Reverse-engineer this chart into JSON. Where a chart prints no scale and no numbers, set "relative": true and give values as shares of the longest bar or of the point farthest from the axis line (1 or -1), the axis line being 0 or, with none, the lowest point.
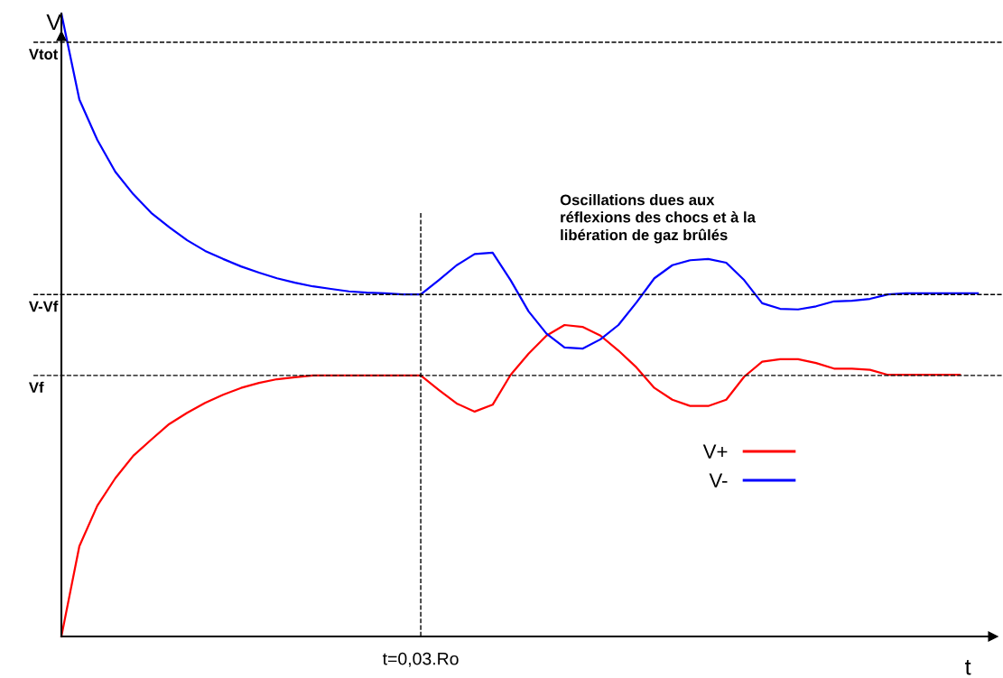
{
  "chart_data": {
    "type": "line",
    "relative": true,
    "xlabel": "t",
    "ylabel": "V",
    "categories": [
      null,
      null,
      null,
      null,
      null,
      null,
      null,
      null,
      null,
      null,
      null,
      null,
      null,
      null,
      null,
      null,
      null,
      null,
      null,
      null,
      null,
      null,
      null,
      null,
      null,
      null,
      null,
      null,
      null,
      null,
      null,
      null,
      null,
      null,
      null,
      null,
      null,
      null,
      null,
      null,
      null,
      null,
      null,
      null,
      null,
      null,
      null,
      null,
      null,
      null,
      null,
      null
    ],
    "series": [
      {
        "name": "V+",
        "color": "#ff0000",
        "values": [
          0,
          0.145,
          0.21,
          0.254,
          0.29,
          0.316,
          0.341,
          0.359,
          0.375,
          0.388,
          0.399,
          0.407,
          0.413,
          0.416,
          0.419,
          0.419,
          0.419,
          0.419,
          0.419,
          0.419,
          0.419,
          0.396,
          0.374,
          0.361,
          0.372,
          0.42,
          0.454,
          0.483,
          0.5,
          0.497,
          0.483,
          0.459,
          0.432,
          0.399,
          0.38,
          0.37,
          0.37,
          0.38,
          0.417,
          0.441,
          0.445,
          0.445,
          0.439,
          0.43,
          0.43,
          0.428,
          0.42,
          0.42,
          0.42,
          0.42,
          0.42,
          null
        ]
      },
      {
        "name": "V-",
        "color": "#0000ff",
        "values": [
          1.0,
          0.862,
          0.797,
          0.746,
          0.71,
          0.68,
          0.657,
          0.636,
          0.619,
          0.606,
          0.594,
          0.584,
          0.575,
          0.568,
          0.562,
          0.558,
          0.554,
          0.552,
          0.551,
          0.549,
          0.549,
          0.572,
          0.596,
          0.614,
          0.616,
          0.572,
          0.522,
          0.486,
          0.464,
          0.462,
          0.477,
          0.5,
          0.536,
          0.575,
          0.596,
          0.604,
          0.606,
          0.6,
          0.572,
          0.535,
          0.526,
          0.525,
          0.53,
          0.538,
          0.539,
          0.542,
          0.549,
          0.551,
          0.551,
          0.551,
          0.551,
          0.551
        ]
      }
    ],
    "ref_lines": [
      {
        "axis": "y",
        "value": 0.954,
        "label": "Vtot",
        "color": "#000000",
        "line_style": "dashed"
      },
      {
        "axis": "y",
        "value": 0.549,
        "label": "V-Vf",
        "color": "#000000",
        "line_style": "dashed"
      },
      {
        "axis": "y",
        "value": 0.419,
        "label": "Vf",
        "color": "#000000",
        "line_style": "dashed"
      }
    ],
    "annotations": [
      "Oscillations dues aux\nréflexions des chocs et à la\nlibération de gaz brûlés",
      "t=0,03.Ro"
    ],
    "legend": "right",
    "marker": "none",
    "line_style": "solid"
  }
}
